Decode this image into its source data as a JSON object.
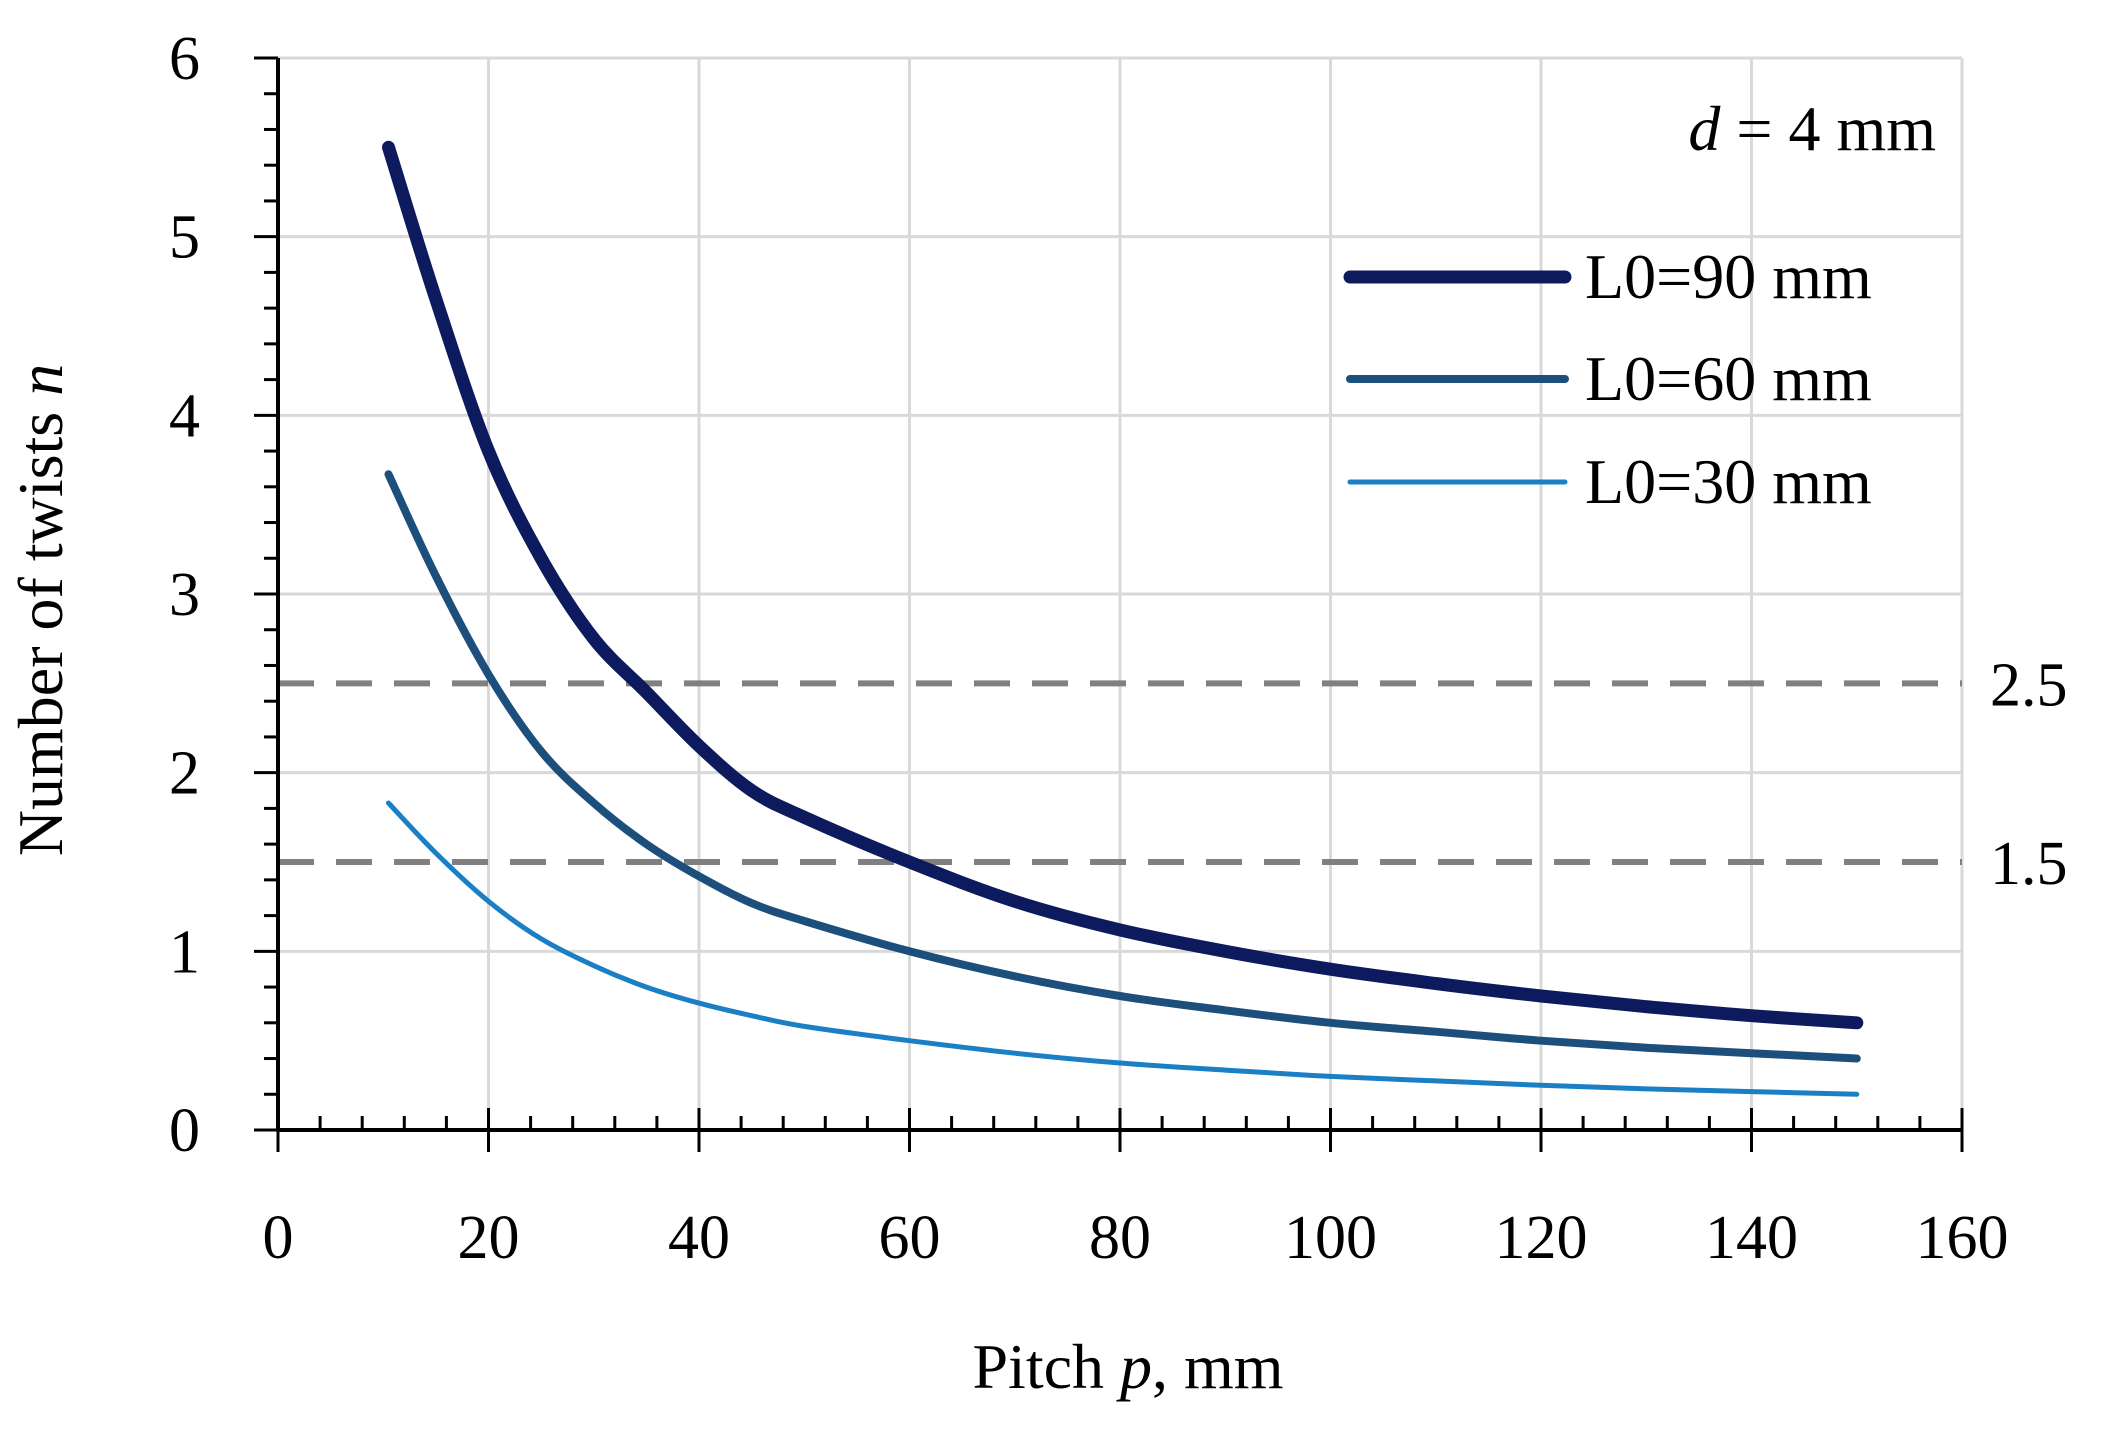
{
  "chart_data": {
    "type": "line",
    "xlabel": {
      "prefix": "Pitch ",
      "var": "p",
      "suffix": ", mm"
    },
    "ylabel": {
      "prefix": "Number of twists ",
      "var": "n"
    },
    "xlim": [
      0,
      160
    ],
    "ylim": [
      0,
      6
    ],
    "x_major_ticks": [
      0,
      20,
      40,
      60,
      80,
      100,
      120,
      140,
      160
    ],
    "y_major_ticks": [
      0,
      1,
      2,
      3,
      4,
      5,
      6
    ],
    "x_minor_step": 4,
    "y_minor_step": 0.2,
    "grid": true,
    "annotation": {
      "var": "d",
      "text": " = 4 mm"
    },
    "reference_lines": [
      {
        "y": 2.5,
        "label": "2.5",
        "color": "#808080"
      },
      {
        "y": 1.5,
        "label": "1.5",
        "color": "#808080"
      }
    ],
    "legend_position": "top-right",
    "series": [
      {
        "name": "L0=90 mm",
        "L0": 90,
        "color": "#0d1b5e",
        "weight": "thick"
      },
      {
        "name": "L0=60 mm",
        "L0": 60,
        "color": "#1d4f7c",
        "weight": "medium"
      },
      {
        "name": "L0=30 mm",
        "L0": 30,
        "color": "#1a7fc4",
        "weight": "thin"
      }
    ],
    "x": [
      10.5,
      15,
      20,
      25,
      30,
      35,
      40,
      45,
      50,
      60,
      70,
      80,
      90,
      100,
      110,
      120,
      130,
      140,
      150
    ],
    "series_values": {
      "L0=90 mm": [
        5.5,
        4.65,
        3.8,
        3.2,
        2.75,
        2.45,
        2.15,
        1.9,
        1.75,
        1.5,
        1.28,
        1.12,
        1.0,
        0.9,
        0.82,
        0.75,
        0.69,
        0.64,
        0.6
      ],
      "L0=60 mm": [
        3.67,
        3.1,
        2.55,
        2.12,
        1.83,
        1.6,
        1.42,
        1.27,
        1.17,
        1.0,
        0.86,
        0.75,
        0.67,
        0.6,
        0.55,
        0.5,
        0.46,
        0.43,
        0.4
      ],
      "L0=30 mm": [
        1.83,
        1.55,
        1.28,
        1.07,
        0.92,
        0.8,
        0.71,
        0.64,
        0.58,
        0.5,
        0.43,
        0.375,
        0.335,
        0.3,
        0.275,
        0.25,
        0.23,
        0.215,
        0.2
      ]
    }
  }
}
